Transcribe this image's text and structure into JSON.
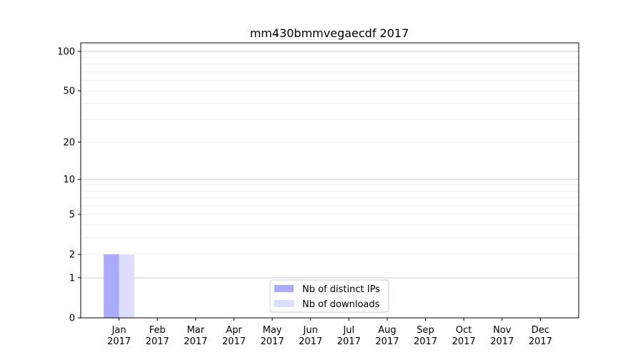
{
  "chart_data": {
    "type": "bar",
    "title": "mm430bmmvegaecdf 2017",
    "xlabel": "",
    "ylabel": "",
    "y_scale": "log(1+y)",
    "ylim": [
      0,
      116
    ],
    "y_ticks": [
      0,
      1,
      2,
      5,
      10,
      20,
      50,
      100
    ],
    "grid": true,
    "legend_position": "lower-center",
    "categories": [
      "Jan\n2017",
      "Feb\n2017",
      "Mar\n2017",
      "Apr\n2017",
      "May\n2017",
      "Jun\n2017",
      "Jul\n2017",
      "Aug\n2017",
      "Sep\n2017",
      "Oct\n2017",
      "Nov\n2017",
      "Dec\n2017"
    ],
    "series": [
      {
        "name": "Nb of distinct IPs",
        "color": "#aaaaff",
        "values": [
          2,
          0,
          0,
          0,
          0,
          0,
          0,
          0,
          0,
          0,
          0,
          0
        ]
      },
      {
        "name": "Nb of downloads",
        "color": "#ddddff",
        "values": [
          2,
          0,
          0,
          0,
          0,
          0,
          0,
          0,
          0,
          0,
          0,
          0
        ]
      }
    ]
  }
}
